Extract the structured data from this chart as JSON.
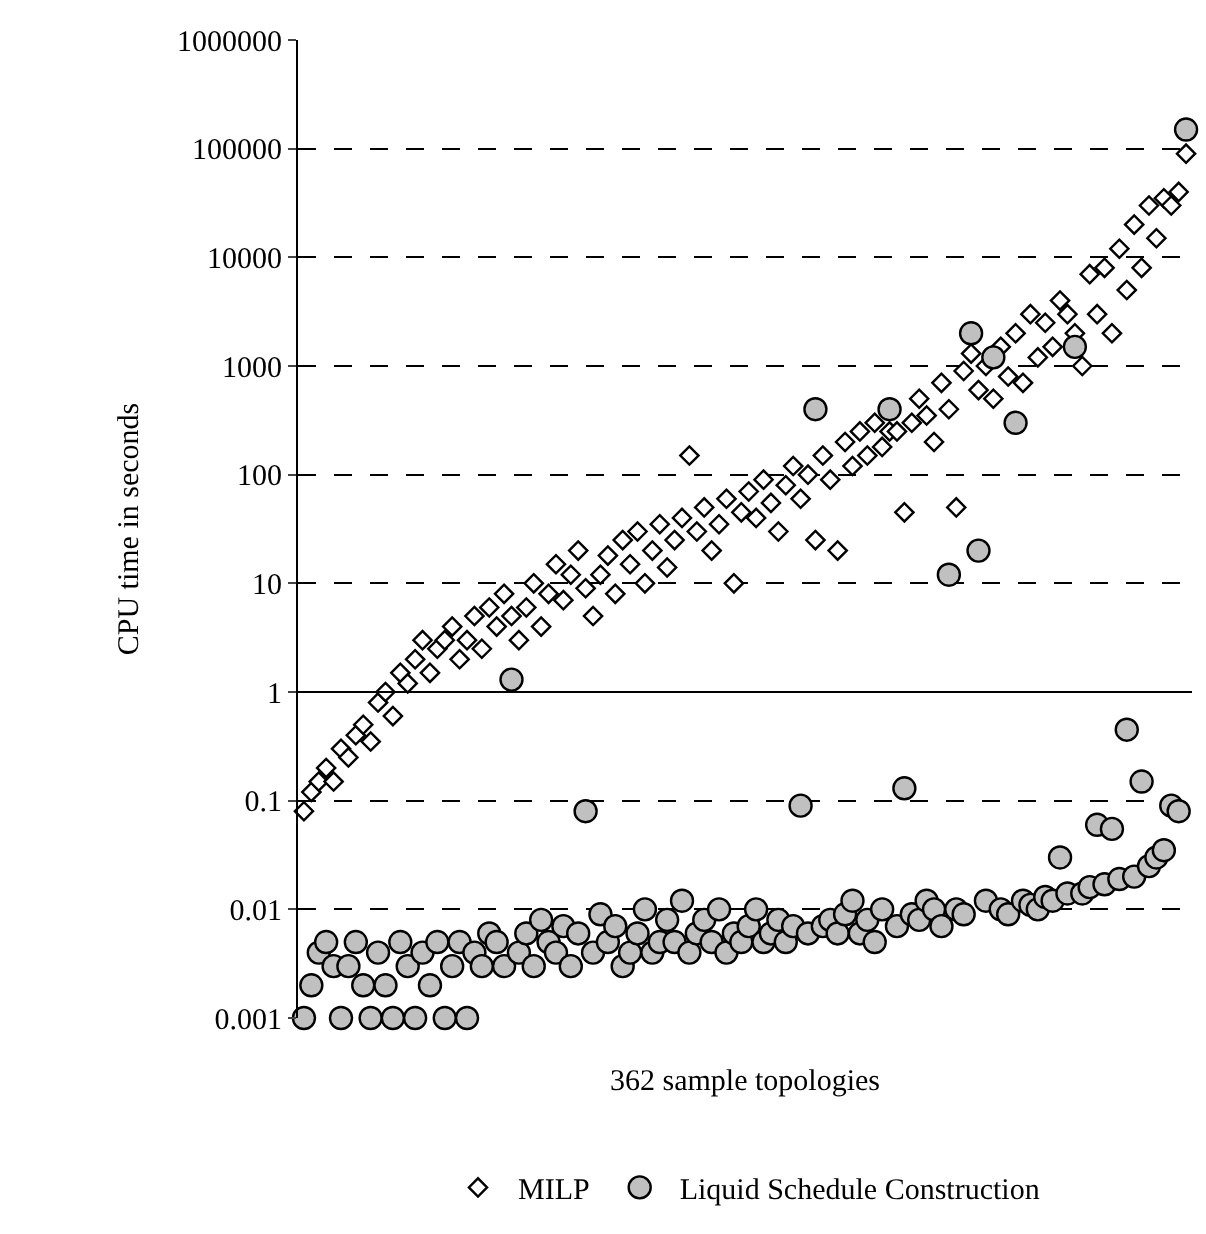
{
  "chart_data": {
    "type": "scatter",
    "xlabel": "362 sample topologies",
    "ylabel": "CPU time in seconds",
    "categories": [
      null,
      null,
      null,
      null,
      null,
      null,
      null,
      null,
      null,
      null,
      null,
      null,
      null,
      null,
      null,
      null,
      null,
      null,
      null,
      null,
      null,
      null,
      null,
      null,
      null,
      null,
      null,
      null,
      null,
      null,
      null,
      null,
      null,
      null,
      null,
      null,
      null,
      null,
      null,
      null,
      null,
      null,
      null,
      null,
      null,
      null,
      null,
      null,
      null,
      null,
      null,
      null,
      null,
      null,
      null,
      null,
      null,
      null,
      null,
      null,
      null,
      null,
      null,
      null,
      null,
      null,
      null,
      null,
      null,
      null,
      null,
      null,
      null,
      null,
      null,
      null,
      null,
      null,
      null,
      null,
      null,
      null,
      null,
      null,
      null,
      null,
      null,
      null,
      null,
      null,
      null,
      null,
      null,
      null,
      null,
      null,
      null,
      null,
      null,
      null,
      null,
      null,
      null,
      null,
      null,
      null,
      null,
      null,
      null,
      null,
      null,
      null,
      null,
      null,
      null,
      null,
      null,
      null,
      null,
      null
    ],
    "series": [
      {
        "name": "MILP",
        "color": "#ffffff",
        "marker": "diamond",
        "values": [
          0.08,
          0.12,
          0.15,
          0.2,
          0.15,
          0.3,
          0.25,
          0.4,
          0.5,
          0.35,
          0.8,
          1,
          0.6,
          1.5,
          1.2,
          2,
          3,
          1.5,
          2.5,
          3,
          4,
          2,
          3,
          5,
          2.5,
          6,
          4,
          8,
          5,
          3,
          6,
          10,
          4,
          8,
          15,
          7,
          12,
          20,
          9,
          5,
          12,
          18,
          8,
          25,
          15,
          30,
          10,
          20,
          35,
          14,
          25,
          40,
          150,
          30,
          50,
          20,
          35,
          60,
          10,
          45,
          70,
          40,
          90,
          55,
          30,
          80,
          120,
          60,
          100,
          25,
          150,
          90,
          20,
          200,
          120,
          250,
          150,
          300,
          180,
          250,
          250,
          45,
          300,
          500,
          350,
          200,
          700,
          400,
          50,
          900,
          1300,
          600,
          1000,
          500,
          1500,
          800,
          2000,
          700,
          3000,
          1200,
          2500,
          1500,
          4000,
          3000,
          2000,
          1000,
          7000,
          3000,
          8000,
          2000,
          12000,
          5000,
          20000,
          8000,
          30000,
          15000,
          35000,
          30000,
          40000,
          90000
        ]
      },
      {
        "name": "Liquid Schedule Construction",
        "color": "#c0c0c0",
        "marker": "circle",
        "values": [
          0.001,
          0.002,
          0.004,
          0.005,
          0.003,
          0.001,
          0.003,
          0.005,
          0.002,
          0.001,
          0.004,
          0.002,
          0.001,
          0.005,
          0.003,
          0.001,
          0.004,
          0.002,
          0.005,
          0.001,
          0.003,
          0.005,
          0.001,
          0.004,
          0.003,
          0.006,
          0.005,
          0.003,
          1.3,
          0.004,
          0.006,
          0.003,
          0.008,
          0.005,
          0.004,
          0.007,
          0.003,
          0.006,
          0.08,
          0.004,
          0.009,
          0.005,
          0.007,
          0.003,
          0.004,
          0.006,
          0.01,
          0.004,
          0.005,
          0.008,
          0.005,
          0.012,
          0.004,
          0.006,
          0.008,
          0.005,
          0.01,
          0.004,
          0.006,
          0.005,
          0.007,
          0.01,
          0.005,
          0.006,
          0.008,
          0.005,
          0.007,
          0.09,
          0.006,
          400,
          0.007,
          0.008,
          0.006,
          0.009,
          0.012,
          0.006,
          0.008,
          0.005,
          0.01,
          400,
          0.007,
          0.13,
          0.009,
          0.008,
          0.012,
          0.01,
          0.007,
          12,
          0.01,
          0.009,
          2000,
          20,
          0.012,
          1200,
          0.01,
          0.009,
          300,
          0.012,
          0.011,
          0.01,
          0.013,
          0.012,
          0.03,
          0.014,
          1500,
          0.014,
          0.016,
          0.06,
          0.017,
          0.055,
          0.019,
          0.45,
          0.02,
          0.15,
          0.025,
          0.03,
          0.035,
          0.09,
          0.08,
          150000
        ]
      }
    ],
    "log": "y",
    "ylim": [
      0.001,
      1000000
    ],
    "yticks": [
      0.001,
      0.01,
      0.1,
      1,
      10,
      100,
      1000,
      10000,
      100000,
      1000000
    ],
    "grid": "y",
    "legend": "bottom",
    "tick_labels": "y",
    "ref_lines": [
      {
        "axis": "y",
        "value": 1,
        "color": "#000000",
        "line_style": "solid"
      }
    ]
  }
}
